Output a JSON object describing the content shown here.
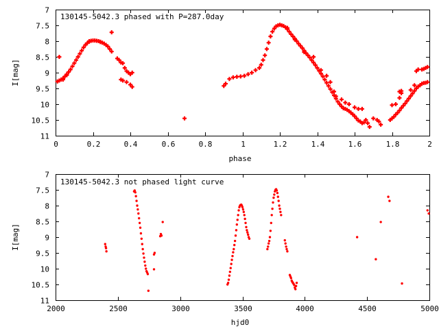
{
  "chart_data": [
    {
      "type": "scatter",
      "title": "130145-5042.3 phased with P=287.0day",
      "xlabel": "phase",
      "ylabel": "I[mag]",
      "xlim": [
        0,
        2
      ],
      "ylim": [
        7,
        11
      ],
      "y_inverted": true,
      "xticks": [
        "0",
        "0.2",
        "0.4",
        "0.6",
        "0.8",
        "1",
        "1.2",
        "1.4",
        "1.6",
        "1.8",
        "2"
      ],
      "yticks": [
        "7",
        "7.5",
        "8",
        "8.5",
        "9",
        "9.5",
        "10",
        "10.5",
        "11"
      ],
      "marker": "plus",
      "color": "#ff0000",
      "points": [
        [
          0.01,
          9.28
        ],
        [
          0.02,
          9.25
        ],
        [
          0.03,
          9.22
        ],
        [
          0.04,
          9.18
        ],
        [
          0.05,
          9.12
        ],
        [
          0.06,
          9.05
        ],
        [
          0.07,
          8.98
        ],
        [
          0.08,
          8.9
        ],
        [
          0.09,
          8.8
        ],
        [
          0.1,
          8.7
        ],
        [
          0.11,
          8.6
        ],
        [
          0.12,
          8.5
        ],
        [
          0.13,
          8.4
        ],
        [
          0.14,
          8.3
        ],
        [
          0.15,
          8.2
        ],
        [
          0.16,
          8.12
        ],
        [
          0.17,
          8.06
        ],
        [
          0.18,
          8.02
        ],
        [
          0.19,
          7.99
        ],
        [
          0.2,
          7.98
        ],
        [
          0.21,
          7.98
        ],
        [
          0.22,
          7.99
        ],
        [
          0.23,
          8.0
        ],
        [
          0.24,
          8.02
        ],
        [
          0.25,
          8.05
        ],
        [
          0.26,
          8.08
        ],
        [
          0.27,
          8.12
        ],
        [
          0.28,
          8.17
        ],
        [
          0.29,
          8.25
        ],
        [
          0.3,
          8.33
        ],
        [
          0.02,
          8.5
        ],
        [
          0.04,
          9.22
        ],
        [
          0.06,
          9.08
        ],
        [
          0.18,
          8.0
        ],
        [
          0.24,
          8.03
        ],
        [
          0.3,
          7.72
        ],
        [
          0.33,
          8.55
        ],
        [
          0.34,
          8.6
        ],
        [
          0.35,
          8.68
        ],
        [
          0.36,
          8.7
        ],
        [
          0.37,
          8.85
        ],
        [
          0.38,
          8.95
        ],
        [
          0.39,
          9.0
        ],
        [
          0.4,
          9.05
        ],
        [
          0.41,
          9.0
        ],
        [
          0.35,
          9.22
        ],
        [
          0.36,
          9.25
        ],
        [
          0.38,
          9.3
        ],
        [
          0.4,
          9.38
        ],
        [
          0.41,
          9.45
        ],
        [
          0.69,
          10.45
        ],
        [
          0.9,
          9.42
        ],
        [
          0.91,
          9.35
        ],
        [
          0.93,
          9.2
        ],
        [
          0.95,
          9.15
        ],
        [
          0.97,
          9.13
        ],
        [
          0.99,
          9.12
        ],
        [
          1.01,
          9.1
        ],
        [
          1.03,
          9.05
        ],
        [
          1.05,
          9.0
        ],
        [
          1.07,
          8.92
        ],
        [
          1.09,
          8.85
        ],
        [
          1.1,
          8.75
        ],
        [
          1.11,
          8.6
        ],
        [
          1.12,
          8.45
        ],
        [
          1.13,
          8.25
        ],
        [
          1.14,
          8.05
        ],
        [
          1.15,
          7.85
        ],
        [
          1.16,
          7.7
        ],
        [
          1.17,
          7.6
        ],
        [
          1.18,
          7.53
        ],
        [
          1.19,
          7.5
        ],
        [
          1.2,
          7.48
        ],
        [
          1.21,
          7.5
        ],
        [
          1.22,
          7.52
        ],
        [
          1.23,
          7.56
        ],
        [
          1.24,
          7.62
        ],
        [
          1.25,
          7.7
        ],
        [
          1.26,
          7.78
        ],
        [
          1.27,
          7.85
        ],
        [
          1.28,
          7.92
        ],
        [
          1.29,
          8.0
        ],
        [
          1.3,
          8.08
        ],
        [
          1.31,
          8.15
        ],
        [
          1.32,
          8.22
        ],
        [
          1.33,
          8.3
        ],
        [
          1.34,
          8.38
        ],
        [
          1.35,
          8.45
        ],
        [
          1.36,
          8.52
        ],
        [
          1.37,
          8.6
        ],
        [
          1.38,
          8.68
        ],
        [
          1.39,
          8.76
        ],
        [
          1.4,
          8.85
        ],
        [
          1.41,
          8.94
        ],
        [
          1.42,
          9.03
        ],
        [
          1.43,
          9.12
        ],
        [
          1.44,
          9.22
        ],
        [
          1.45,
          9.32
        ],
        [
          1.46,
          9.42
        ],
        [
          1.47,
          9.52
        ],
        [
          1.48,
          9.62
        ],
        [
          1.49,
          9.72
        ],
        [
          1.5,
          9.82
        ],
        [
          1.51,
          9.92
        ],
        [
          1.52,
          10.0
        ],
        [
          1.53,
          10.07
        ],
        [
          1.54,
          10.13
        ],
        [
          1.55,
          10.15
        ],
        [
          1.56,
          10.18
        ],
        [
          1.57,
          10.22
        ],
        [
          1.58,
          10.27
        ],
        [
          1.59,
          10.32
        ],
        [
          1.6,
          10.38
        ],
        [
          1.61,
          10.45
        ],
        [
          1.62,
          10.52
        ],
        [
          1.63,
          10.55
        ],
        [
          1.64,
          10.6
        ],
        [
          1.65,
          10.58
        ],
        [
          1.24,
          7.58
        ],
        [
          1.28,
          7.95
        ],
        [
          1.33,
          8.35
        ],
        [
          1.38,
          8.5
        ],
        [
          1.42,
          8.92
        ],
        [
          1.45,
          9.1
        ],
        [
          1.47,
          9.3
        ],
        [
          1.49,
          9.6
        ],
        [
          1.5,
          9.75
        ],
        [
          1.53,
          9.85
        ],
        [
          1.55,
          9.95
        ],
        [
          1.57,
          10.0
        ],
        [
          1.6,
          10.1
        ],
        [
          1.62,
          10.15
        ],
        [
          1.64,
          10.15
        ],
        [
          1.66,
          10.5
        ],
        [
          1.67,
          10.6
        ],
        [
          1.68,
          10.72
        ],
        [
          1.7,
          10.45
        ],
        [
          1.72,
          10.5
        ],
        [
          1.73,
          10.55
        ],
        [
          1.74,
          10.65
        ],
        [
          1.79,
          10.5
        ],
        [
          1.8,
          10.45
        ],
        [
          1.81,
          10.4
        ],
        [
          1.82,
          10.33
        ],
        [
          1.83,
          10.27
        ],
        [
          1.84,
          10.2
        ],
        [
          1.85,
          10.12
        ],
        [
          1.86,
          10.05
        ],
        [
          1.87,
          9.98
        ],
        [
          1.88,
          9.9
        ],
        [
          1.89,
          9.82
        ],
        [
          1.9,
          9.74
        ],
        [
          1.91,
          9.66
        ],
        [
          1.92,
          9.58
        ],
        [
          1.93,
          9.5
        ],
        [
          1.94,
          9.44
        ],
        [
          1.95,
          9.4
        ],
        [
          1.96,
          9.35
        ],
        [
          1.97,
          9.33
        ],
        [
          1.98,
          9.32
        ],
        [
          1.99,
          9.3
        ],
        [
          1.8,
          10.03
        ],
        [
          1.82,
          10.0
        ],
        [
          1.84,
          9.8
        ],
        [
          1.85,
          9.65
        ],
        [
          1.9,
          9.55
        ],
        [
          1.92,
          9.4
        ],
        [
          1.93,
          8.95
        ],
        [
          1.94,
          8.9
        ],
        [
          1.96,
          8.9
        ],
        [
          1.97,
          8.88
        ],
        [
          1.98,
          8.85
        ],
        [
          1.99,
          8.82
        ],
        [
          1.84,
          9.6
        ],
        [
          1.85,
          9.58
        ]
      ]
    },
    {
      "type": "scatter",
      "title": "130145-5042.3 not phased light curve",
      "xlabel": "hjd0",
      "ylabel": "I[mag]",
      "xlim": [
        2000,
        5000
      ],
      "ylim": [
        7,
        11
      ],
      "y_inverted": true,
      "xticks": [
        "2000",
        "2500",
        "3000",
        "3500",
        "4000",
        "4500",
        "5000"
      ],
      "yticks": [
        "7",
        "7.5",
        "8",
        "8.5",
        "9",
        "9.5",
        "10",
        "10.5",
        "11"
      ],
      "marker": "dot",
      "color": "#ff0000",
      "points": [
        [
          2398,
          9.22
        ],
        [
          2402,
          9.3
        ],
        [
          2405,
          9.35
        ],
        [
          2408,
          9.45
        ],
        [
          2630,
          7.55
        ],
        [
          2635,
          7.52
        ],
        [
          2640,
          7.58
        ],
        [
          2645,
          7.7
        ],
        [
          2650,
          7.85
        ],
        [
          2655,
          8.0
        ],
        [
          2660,
          8.12
        ],
        [
          2665,
          8.25
        ],
        [
          2670,
          8.4
        ],
        [
          2675,
          8.55
        ],
        [
          2680,
          8.7
        ],
        [
          2685,
          8.88
        ],
        [
          2690,
          9.05
        ],
        [
          2695,
          9.22
        ],
        [
          2700,
          9.38
        ],
        [
          2705,
          9.52
        ],
        [
          2710,
          9.65
        ],
        [
          2715,
          9.78
        ],
        [
          2720,
          9.9
        ],
        [
          2725,
          10.0
        ],
        [
          2730,
          10.08
        ],
        [
          2735,
          10.12
        ],
        [
          2740,
          10.17
        ],
        [
          2745,
          10.7
        ],
        [
          2790,
          9.55
        ],
        [
          2795,
          9.5
        ],
        [
          2790,
          10.02
        ],
        [
          2840,
          8.97
        ],
        [
          2845,
          8.9
        ],
        [
          2850,
          8.95
        ],
        [
          2860,
          8.52
        ],
        [
          3380,
          10.5
        ],
        [
          3385,
          10.45
        ],
        [
          3390,
          10.35
        ],
        [
          3395,
          10.22
        ],
        [
          3400,
          10.1
        ],
        [
          3405,
          9.98
        ],
        [
          3410,
          9.85
        ],
        [
          3415,
          9.72
        ],
        [
          3420,
          9.6
        ],
        [
          3425,
          9.48
        ],
        [
          3430,
          9.38
        ],
        [
          3435,
          9.25
        ],
        [
          3440,
          9.12
        ],
        [
          3445,
          8.95
        ],
        [
          3450,
          8.78
        ],
        [
          3455,
          8.6
        ],
        [
          3460,
          8.45
        ],
        [
          3465,
          8.3
        ],
        [
          3470,
          8.15
        ],
        [
          3475,
          8.05
        ],
        [
          3480,
          8.0
        ],
        [
          3485,
          7.98
        ],
        [
          3490,
          7.97
        ],
        [
          3495,
          8.0
        ],
        [
          3500,
          8.05
        ],
        [
          3505,
          8.12
        ],
        [
          3510,
          8.2
        ],
        [
          3515,
          8.3
        ],
        [
          3520,
          8.42
        ],
        [
          3525,
          8.55
        ],
        [
          3530,
          8.68
        ],
        [
          3535,
          8.78
        ],
        [
          3540,
          8.85
        ],
        [
          3545,
          8.92
        ],
        [
          3550,
          9.0
        ],
        [
          3555,
          9.05
        ],
        [
          3700,
          9.38
        ],
        [
          3705,
          9.3
        ],
        [
          3710,
          9.2
        ],
        [
          3715,
          9.12
        ],
        [
          3720,
          9.0
        ],
        [
          3725,
          8.8
        ],
        [
          3730,
          8.55
        ],
        [
          3735,
          8.3
        ],
        [
          3740,
          8.1
        ],
        [
          3745,
          7.9
        ],
        [
          3750,
          7.75
        ],
        [
          3755,
          7.65
        ],
        [
          3760,
          7.55
        ],
        [
          3765,
          7.5
        ],
        [
          3770,
          7.48
        ],
        [
          3775,
          7.52
        ],
        [
          3780,
          7.6
        ],
        [
          3785,
          7.72
        ],
        [
          3790,
          7.85
        ],
        [
          3795,
          8.0
        ],
        [
          3800,
          8.1
        ],
        [
          3805,
          8.2
        ],
        [
          3810,
          8.3
        ],
        [
          3840,
          9.1
        ],
        [
          3845,
          9.2
        ],
        [
          3850,
          9.3
        ],
        [
          3855,
          9.38
        ],
        [
          3860,
          9.45
        ],
        [
          3880,
          10.2
        ],
        [
          3885,
          10.25
        ],
        [
          3890,
          10.3
        ],
        [
          3895,
          10.38
        ],
        [
          3900,
          10.42
        ],
        [
          3905,
          10.45
        ],
        [
          3910,
          10.48
        ],
        [
          3915,
          10.52
        ],
        [
          3920,
          10.6
        ],
        [
          3925,
          10.65
        ],
        [
          3930,
          10.55
        ],
        [
          3935,
          10.45
        ],
        [
          4420,
          9.0
        ],
        [
          4570,
          9.7
        ],
        [
          4610,
          8.52
        ],
        [
          4670,
          7.72
        ],
        [
          4680,
          7.85
        ],
        [
          4780,
          10.47
        ],
        [
          4985,
          8.15
        ],
        [
          4995,
          8.25
        ]
      ]
    }
  ]
}
